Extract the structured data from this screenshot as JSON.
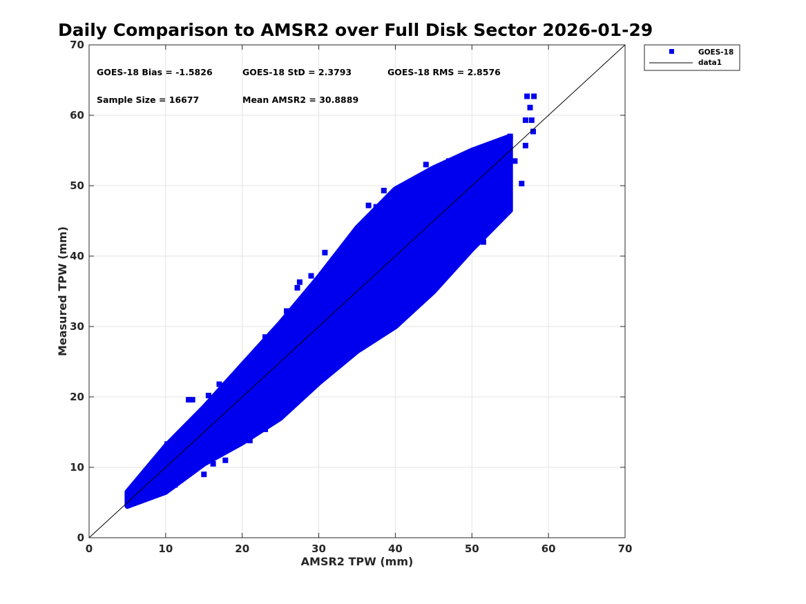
{
  "chart_data": {
    "type": "scatter",
    "title": "Daily Comparison to AMSR2 over Full Disk Sector 2026-01-29",
    "xlabel": "AMSR2 TPW (mm)",
    "ylabel": "Measured TPW (mm)",
    "xlim": [
      0,
      70
    ],
    "ylim": [
      0,
      70
    ],
    "xticks": [
      "0",
      "10",
      "20",
      "30",
      "40",
      "50",
      "60",
      "70"
    ],
    "yticks": [
      "0",
      "10",
      "20",
      "30",
      "40",
      "50",
      "60",
      "70"
    ],
    "grid": true,
    "legend_position": "outside-top-right",
    "legend": [
      "GOES-18",
      "data1"
    ],
    "stats": {
      "bias": "GOES-18 Bias = -1.5826",
      "std": "GOES-18 StD = 2.3793",
      "rms": "GOES-18 RMS = 2.8576",
      "sample_size": "Sample Size = 16677",
      "mean": "Mean AMSR2 = 30.8889"
    },
    "series": [
      {
        "name": "GOES-18",
        "marker": "square",
        "color": "#0000ee",
        "cloud_envelope_x": [
          5,
          10,
          15,
          20,
          25,
          30,
          35,
          40,
          45,
          50,
          55
        ],
        "cloud_envelope_lower": [
          4.5,
          6.5,
          10.5,
          13.5,
          17.0,
          22.0,
          26.5,
          30.0,
          35.0,
          41.0,
          46.5
        ],
        "cloud_envelope_upper": [
          6.5,
          13.0,
          18.5,
          24.5,
          30.5,
          37.0,
          44.0,
          49.5,
          52.5,
          55.0,
          57.0
        ],
        "points": [
          [
            5.2,
            4.9
          ],
          [
            5.7,
            4.9
          ],
          [
            6.1,
            6.0
          ],
          [
            7.0,
            5.5
          ],
          [
            9.6,
            6.5
          ],
          [
            10.2,
            13.3
          ],
          [
            10.8,
            13.3
          ],
          [
            11.0,
            8.5
          ],
          [
            11.2,
            7.5
          ],
          [
            13.0,
            9.8
          ],
          [
            13.0,
            19.6
          ],
          [
            13.5,
            19.6
          ],
          [
            14.1,
            16.6
          ],
          [
            15.0,
            9.0
          ],
          [
            15.5,
            11.0
          ],
          [
            15.6,
            20.2
          ],
          [
            16.2,
            10.5
          ],
          [
            17.0,
            21.8
          ],
          [
            17.8,
            11.0
          ],
          [
            19.0,
            13.2
          ],
          [
            21.0,
            13.8
          ],
          [
            23.0,
            15.4
          ],
          [
            23.0,
            28.5
          ],
          [
            24.5,
            20.5
          ],
          [
            25.3,
            21.6
          ],
          [
            25.8,
            32.2
          ],
          [
            26.8,
            22.5
          ],
          [
            27.2,
            35.5
          ],
          [
            27.5,
            36.3
          ],
          [
            28.0,
            23.0
          ],
          [
            29.0,
            37.2
          ],
          [
            30.0,
            24.0
          ],
          [
            30.8,
            40.5
          ],
          [
            32.5,
            28.0
          ],
          [
            34.5,
            31.0
          ],
          [
            36.0,
            29.0
          ],
          [
            36.5,
            47.2
          ],
          [
            37.5,
            47.0
          ],
          [
            38.5,
            49.3
          ],
          [
            39.0,
            35.0
          ],
          [
            40.0,
            33.5
          ],
          [
            40.7,
            45.0
          ],
          [
            41.0,
            36.5
          ],
          [
            43.0,
            38.5
          ],
          [
            44.0,
            53.0
          ],
          [
            45.0,
            40.0
          ],
          [
            47.0,
            53.5
          ],
          [
            48.5,
            41.0
          ],
          [
            50.5,
            44.5
          ],
          [
            51.5,
            42.0
          ],
          [
            53.0,
            49.0
          ],
          [
            54.0,
            46.5
          ],
          [
            55.0,
            57.0
          ],
          [
            55.6,
            53.5
          ],
          [
            56.5,
            50.3
          ],
          [
            57.0,
            55.7
          ],
          [
            57.0,
            59.3
          ],
          [
            57.2,
            62.7
          ],
          [
            57.6,
            61.1
          ],
          [
            57.8,
            59.3
          ],
          [
            58.0,
            57.7
          ],
          [
            58.1,
            62.7
          ]
        ]
      },
      {
        "name": "data1",
        "type": "line",
        "color": "#000000",
        "x": [
          0,
          70
        ],
        "y": [
          0,
          70
        ]
      }
    ]
  }
}
